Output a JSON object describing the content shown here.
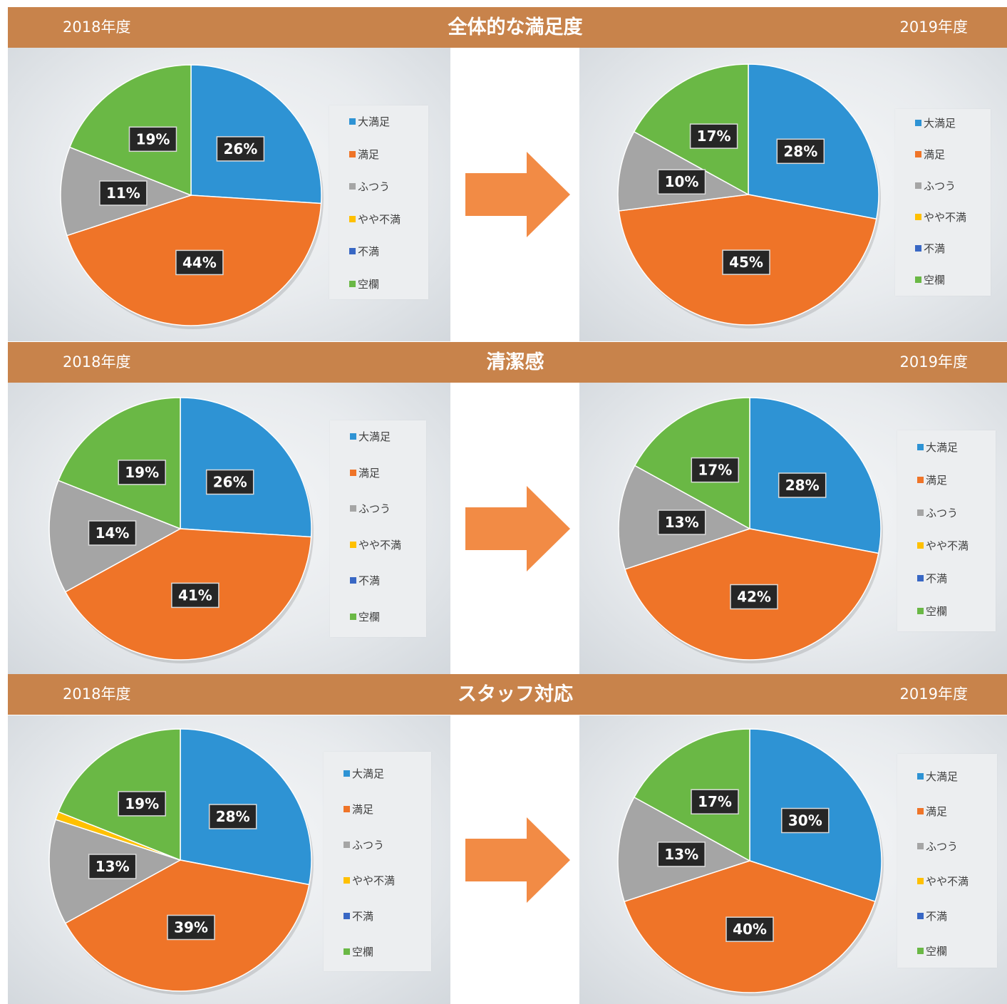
{
  "year_left": "2018年度",
  "year_right": "2019年度",
  "legend_items": [
    {
      "label": "大満足",
      "color": "#2e93d4"
    },
    {
      "label": "満足",
      "color": "#ef7428"
    },
    {
      "label": "ふつう",
      "color": "#a5a5a5"
    },
    {
      "label": "やや不満",
      "color": "#ffc000"
    },
    {
      "label": "不満",
      "color": "#3867c4"
    },
    {
      "label": "空欄",
      "color": "#6ab845"
    }
  ],
  "sections": [
    {
      "title": "全体的な満足度",
      "charts": [
        {
          "year": "2018年度",
          "labels": [
            "26%",
            "44%",
            "11%",
            "",
            "",
            "19%"
          ]
        },
        {
          "year": "2019年度",
          "labels": [
            "28%",
            "45%",
            "10%",
            "",
            "",
            "17%"
          ]
        }
      ]
    },
    {
      "title": "清潔感",
      "charts": [
        {
          "year": "2018年度",
          "labels": [
            "26%",
            "41%",
            "14%",
            "",
            "",
            "19%"
          ]
        },
        {
          "year": "2019年度",
          "labels": [
            "28%",
            "42%",
            "13%",
            "",
            "",
            "17%"
          ]
        }
      ]
    },
    {
      "title": "スタッフ対応",
      "charts": [
        {
          "year": "2018年度",
          "labels": [
            "28%",
            "39%",
            "13%",
            "1%",
            "",
            "19%"
          ]
        },
        {
          "year": "2019年度",
          "labels": [
            "30%",
            "40%",
            "13%",
            "",
            "",
            "17%"
          ]
        }
      ]
    }
  ],
  "chart_data": [
    {
      "type": "pie",
      "title": "全体的な満足度",
      "subtitle": "2018年度",
      "categories": [
        "大満足",
        "満足",
        "ふつう",
        "やや不満",
        "不満",
        "空欄"
      ],
      "values": [
        26,
        44,
        11,
        0,
        0,
        19
      ],
      "legend": "right"
    },
    {
      "type": "pie",
      "title": "全体的な満足度",
      "subtitle": "2019年度",
      "categories": [
        "大満足",
        "満足",
        "ふつう",
        "やや不満",
        "不満",
        "空欄"
      ],
      "values": [
        28,
        45,
        10,
        0,
        0,
        17
      ],
      "legend": "right"
    },
    {
      "type": "pie",
      "title": "清潔感",
      "subtitle": "2018年度",
      "categories": [
        "大満足",
        "満足",
        "ふつう",
        "やや不満",
        "不満",
        "空欄"
      ],
      "values": [
        26,
        41,
        14,
        0,
        0,
        19
      ],
      "legend": "right"
    },
    {
      "type": "pie",
      "title": "清潔感",
      "subtitle": "2019年度",
      "categories": [
        "大満足",
        "満足",
        "ふつう",
        "やや不満",
        "不満",
        "空欄"
      ],
      "values": [
        28,
        42,
        13,
        0,
        0,
        17
      ],
      "legend": "right"
    },
    {
      "type": "pie",
      "title": "スタッフ対応",
      "subtitle": "2018年度",
      "categories": [
        "大満足",
        "満足",
        "ふつう",
        "やや不満",
        "不満",
        "空欄"
      ],
      "values": [
        28,
        39,
        13,
        1,
        0,
        19
      ],
      "legend": "right"
    },
    {
      "type": "pie",
      "title": "スタッフ対応",
      "subtitle": "2019年度",
      "categories": [
        "大満足",
        "満足",
        "ふつう",
        "やや不満",
        "不満",
        "空欄"
      ],
      "values": [
        30,
        40,
        13,
        0,
        0,
        17
      ],
      "legend": "right"
    }
  ],
  "arrow_color": "#f28b45"
}
